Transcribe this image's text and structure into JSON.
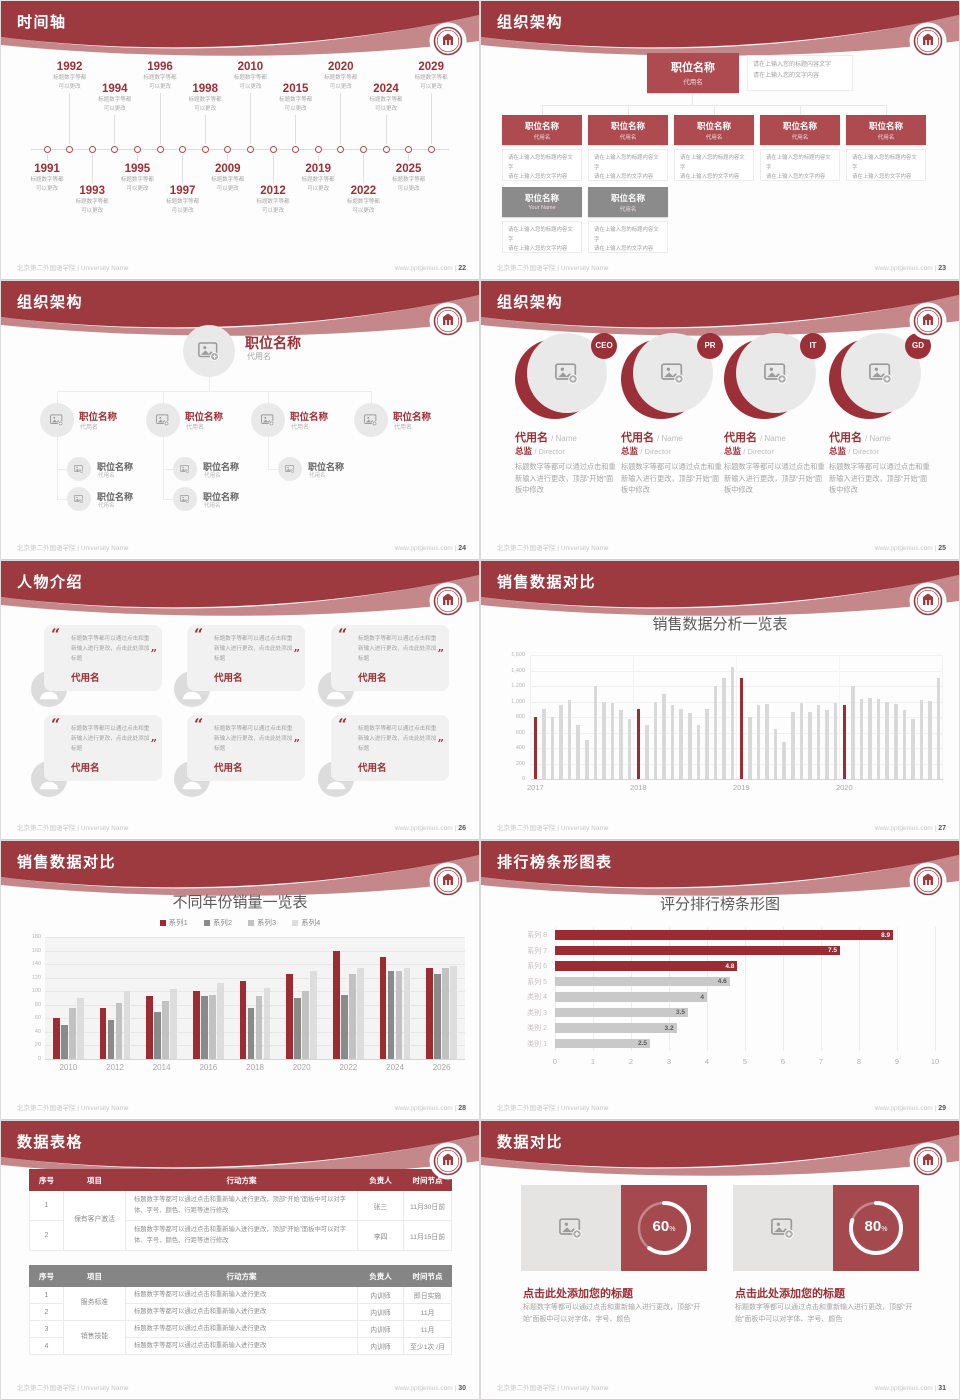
{
  "footer": {
    "left": "北京第二外国语学院 | University Name",
    "site": "www.pptgenius.com",
    "sep": "|"
  },
  "colors": {
    "band_red": "#9c3a40",
    "band_light": "#c4888b",
    "accent_red": "#9c2f35",
    "box_red": "#ad4b50",
    "box_gray": "#8b8b8b",
    "bar_red": "#9c2b32",
    "bar_gray": "#d9d9d9",
    "table_header_red": "#9c3a40",
    "table_header_gray": "#858585",
    "donut_red": "#a4494e"
  },
  "icons": {
    "logo": "university-seal-icon",
    "image_placeholder": "image-plus-icon",
    "avatar": "person-icon",
    "quote_open": "quote-open-icon",
    "quote_close": "quote-close-icon"
  },
  "slides": {
    "timeline": {
      "title": "时间轴",
      "page": "22",
      "desc": [
        "标题数字等都",
        "可以更改"
      ],
      "items": [
        {
          "year": "1991",
          "side": "below",
          "level": 1
        },
        {
          "year": "1992",
          "side": "above",
          "level": 1
        },
        {
          "year": "1993",
          "side": "below",
          "level": 2
        },
        {
          "year": "1994",
          "side": "above",
          "level": 2
        },
        {
          "year": "1995",
          "side": "below",
          "level": 1
        },
        {
          "year": "1996",
          "side": "above",
          "level": 1
        },
        {
          "year": "1997",
          "side": "below",
          "level": 2
        },
        {
          "year": "1998",
          "side": "above",
          "level": 2
        },
        {
          "year": "2009",
          "side": "below",
          "level": 1
        },
        {
          "year": "2010",
          "side": "above",
          "level": 1
        },
        {
          "year": "2012",
          "side": "below",
          "level": 2
        },
        {
          "year": "2015",
          "side": "above",
          "level": 2
        },
        {
          "year": "2019",
          "side": "below",
          "level": 1
        },
        {
          "year": "2020",
          "side": "above",
          "level": 1
        },
        {
          "year": "2022",
          "side": "below",
          "level": 2
        },
        {
          "year": "2024",
          "side": "above",
          "level": 2
        },
        {
          "year": "2025",
          "side": "below",
          "level": 1
        },
        {
          "year": "2029",
          "side": "above",
          "level": 1
        }
      ]
    },
    "org1": {
      "title": "组织架构",
      "page": "23",
      "box_title": "职位名称",
      "box_sub": "代用名",
      "note": [
        "请在上输入您的标题内容文字",
        "请在上输入您的文字内容"
      ],
      "children": 5,
      "gray_boxes": [
        {
          "title": "职位名称",
          "sub": "Your Name"
        },
        {
          "title": "职位名称",
          "sub": "代用名"
        }
      ]
    },
    "org2": {
      "title": "组织架构",
      "page": "24",
      "node_title": "职位名称",
      "node_sub": "代用名",
      "children": 4,
      "sub_counts": [
        2,
        2,
        1,
        0
      ]
    },
    "org3": {
      "title": "组织架构",
      "page": "25",
      "badges": [
        "CEO",
        "PR",
        "IT",
        "GD"
      ],
      "name": "代用名",
      "name_en": "/ Name",
      "role": "总监",
      "role_en": "/ Director",
      "body": "标题数字等都可以通过点击和重新输入进行更改，顶部“开始”面板中修改"
    },
    "people": {
      "title": "人物介绍",
      "page": "26",
      "quote": "标题数字等都可以通过点击和重新输入进行更改，点击此处添加标题",
      "name": "代用名",
      "count": 6
    },
    "sales1": {
      "title": "销售数据对比",
      "page": "27"
    },
    "sales2": {
      "title": "销售数据对比",
      "page": "28"
    },
    "ranking": {
      "title": "排行榜条形图表",
      "page": "29"
    },
    "tables": {
      "title": "数据表格",
      "page": "30",
      "table1": {
        "header": [
          "序号",
          "项目",
          "行动方案",
          "负责人",
          "时间节点"
        ],
        "groups": [
          {
            "project": "保有客户激活",
            "rows": [
              {
                "no": "1",
                "action": "标题数字等都可以通过点击和重新输入进行更改，顶部“开始”面板中可以对字体、字号、颜色、行距等进行修改",
                "owner": "张三",
                "time": "11月30日前"
              },
              {
                "no": "2",
                "action": "标题数字等都可以通过点击和重新输入进行更改，顶部“开始”面板中可以对字体、字号、颜色、行距等进行修改",
                "owner": "李四",
                "time": "11月15日前"
              }
            ]
          }
        ]
      },
      "table2": {
        "header": [
          "序号",
          "项目",
          "行动方案",
          "负责人",
          "时间节点"
        ],
        "groups": [
          {
            "project": "服务标准",
            "rows": [
              {
                "no": "1",
                "action": "标题数字等都可以通过点击和重新输入进行更改",
                "owner": "内训师",
                "time": "即日实施"
              },
              {
                "no": "2",
                "action": "标题数字等都可以通过点击和重新输入进行更改",
                "owner": "内训师",
                "time": "11月"
              }
            ]
          },
          {
            "project": "销售技能",
            "rows": [
              {
                "no": "3",
                "action": "标题数字等都可以通过点击和重新输入进行更改",
                "owner": "内训师",
                "time": "11月"
              },
              {
                "no": "4",
                "action": "标题数字等都可以通过点击和重新输入进行更改",
                "owner": "内训师",
                "time": "至少1次 /月"
              }
            ]
          }
        ]
      }
    },
    "compare": {
      "title": "数据对比",
      "page": "31",
      "items": [
        {
          "pct": 60
        },
        {
          "pct": 80
        }
      ],
      "pct_sign": "%",
      "item_title": "点击此处添加您的标题",
      "body": "标题数字等都可以通过点击和重新输入进行更改，顶部“开始”面板中可以对字体、字号、颜色"
    }
  },
  "chart_data": [
    {
      "type": "bar",
      "title": "销售数据分析一览表",
      "xlabel": "",
      "ylabel": "",
      "x_groups": [
        "2017",
        "2018",
        "2019",
        "2020"
      ],
      "group_start_indices": [
        0,
        12,
        24,
        36
      ],
      "values": [
        800,
        900,
        800,
        950,
        1020,
        700,
        500,
        1200,
        1000,
        980,
        890,
        780,
        900,
        700,
        1000,
        1100,
        950,
        900,
        850,
        700,
        900,
        1200,
        1300,
        1450,
        1300,
        800,
        950,
        970,
        650,
        480,
        870,
        980,
        860,
        960,
        890,
        980,
        950,
        1200,
        1030,
        1040,
        1030,
        990,
        970,
        890,
        780,
        1020,
        1010,
        1300
      ],
      "highlight_indices": [
        0,
        12,
        24,
        36
      ],
      "ylim": [
        0,
        1600
      ],
      "ytick_step": 200,
      "ytick_labels": [
        "0",
        "200",
        "400",
        "600",
        "800",
        "1,000",
        "1,200",
        "1,400",
        "1,600"
      ],
      "grid": true,
      "legend_position": "none",
      "bar_color": "#d9d9d9",
      "highlight_color": "#9c2b32"
    },
    {
      "type": "bar",
      "title": "不同年份销量一览表",
      "xlabel": "",
      "ylabel": "",
      "categories": [
        "2010",
        "2012",
        "2014",
        "2016",
        "2018",
        "2020",
        "2022",
        "2024",
        "2026"
      ],
      "series": [
        {
          "name": "系列1",
          "color": "#9c2b32",
          "values": [
            60,
            75,
            93,
            100,
            115,
            125,
            160,
            150,
            135
          ]
        },
        {
          "name": "系列2",
          "color": "#8a8a8a",
          "values": [
            50,
            57,
            69,
            93,
            75,
            90,
            95,
            130,
            125
          ]
        },
        {
          "name": "系列3",
          "color": "#c2c2c2",
          "values": [
            75,
            82,
            86,
            95,
            93,
            100,
            125,
            130,
            135
          ]
        },
        {
          "name": "系列4",
          "color": "#dddddd",
          "values": [
            90,
            100,
            103,
            112,
            105,
            130,
            135,
            135,
            138
          ]
        }
      ],
      "ylim": [
        0,
        180
      ],
      "ytick_step": 20,
      "grid": true,
      "legend_position": "top",
      "plot_bg": "#f4f4f4"
    },
    {
      "type": "bar-horizontal",
      "title": "评分排行榜条形图",
      "xlabel": "",
      "ylabel": "",
      "categories": [
        "系列 8",
        "系列 7",
        "系列 6",
        "系列 5",
        "类别 4",
        "类别 3",
        "类别 2",
        "类别 1"
      ],
      "values": [
        8.9,
        7.5,
        4.8,
        4.6,
        4,
        3.5,
        3.2,
        2.5
      ],
      "value_labels": [
        "8.9",
        "7.5",
        "4.8",
        "4.6",
        "4",
        "3.5",
        "3.2",
        "2.5"
      ],
      "bar_colors": [
        "#9c2b32",
        "#9c2b32",
        "#9c2b32",
        "#c9c9c9",
        "#c9c9c9",
        "#c9c9c9",
        "#c9c9c9",
        "#c9c9c9"
      ],
      "xlim": [
        0,
        10
      ],
      "xtick_step": 1,
      "grid": true,
      "data_labels": true,
      "legend_position": "none"
    }
  ]
}
